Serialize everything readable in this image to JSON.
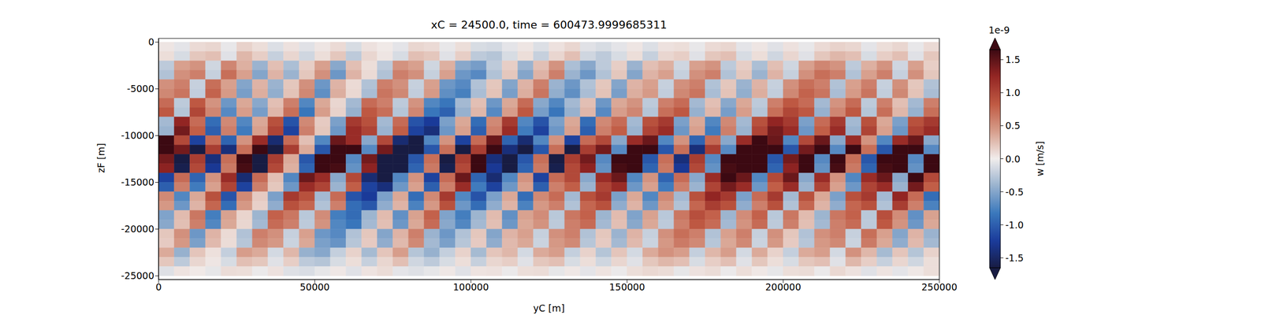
{
  "chart_data": {
    "type": "heatmap",
    "title": "xC = 24500.0, time = 600473.9999685311",
    "x_label": "yC [m]",
    "y_label": "zF [m]",
    "xlim": [
      0,
      250000
    ],
    "xticks": [
      0,
      50000,
      100000,
      150000,
      200000,
      250000
    ],
    "ylim": [
      -25400,
      400
    ],
    "yticks": [
      -25000,
      -20000,
      -15000,
      -10000,
      -5000,
      0
    ],
    "x_edges": [
      0,
      5000,
      10000,
      15000,
      20000,
      25000,
      30000,
      35000,
      40000,
      45000,
      50000,
      55000,
      60000,
      65000,
      70000,
      75000,
      80000,
      85000,
      90000,
      95000,
      100000,
      105000,
      110000,
      115000,
      120000,
      125000,
      130000,
      135000,
      140000,
      145000,
      150000,
      155000,
      160000,
      165000,
      170000,
      175000,
      180000,
      185000,
      190000,
      195000,
      200000,
      205000,
      210000,
      215000,
      220000,
      225000,
      230000,
      235000,
      240000,
      245000,
      250000
    ],
    "y_edges": [
      0,
      -1000,
      -2000,
      -3000,
      -4000,
      -5000,
      -6000,
      -7000,
      -8000,
      -9000,
      -10000,
      -11000,
      -12000,
      -13000,
      -14000,
      -15000,
      -16000,
      -17000,
      -18000,
      -19000,
      -20000,
      -21000,
      -22000,
      -23000,
      -24000,
      -25000
    ],
    "cells": [
      [
        0.04,
        -0.06,
        0.1,
        0.12,
        -0.04,
        0.14,
        0.08,
        -0.1,
        0.06,
        -0.08,
        0.04,
        0.1,
        -0.12,
        0.06,
        0.02,
        -0.06,
        0.12,
        0.1,
        -0.04,
        0.08,
        -0.12,
        -0.14,
        -0.06,
        0.04,
        -0.1,
        0.06,
        0.12,
        -0.08,
        -0.12,
        -0.06,
        0.04,
        -0.1,
        0.06,
        0.08,
        -0.04,
        0.1,
        0.12,
        -0.06,
        0.04,
        -0.08,
        0.06,
        -0.04,
        0.1,
        0.14,
        0.12,
        -0.06,
        0.08,
        0.12,
        -0.04,
        0.1
      ],
      [
        0.08,
        -0.12,
        0.2,
        0.24,
        -0.08,
        0.28,
        0.16,
        -0.2,
        0.12,
        -0.16,
        0.08,
        0.2,
        -0.24,
        0.12,
        0.04,
        -0.12,
        0.24,
        0.2,
        -0.08,
        0.16,
        -0.24,
        -0.28,
        -0.12,
        0.08,
        -0.2,
        0.12,
        0.24,
        -0.16,
        -0.24,
        -0.12,
        0.08,
        -0.2,
        0.12,
        0.16,
        -0.08,
        0.2,
        0.24,
        -0.12,
        0.08,
        -0.16,
        0.12,
        -0.08,
        0.2,
        0.28,
        0.24,
        -0.12,
        0.16,
        0.24,
        -0.08,
        0.2
      ],
      [
        -0.24,
        0.4,
        0.48,
        -0.16,
        0.56,
        0.32,
        -0.4,
        0.24,
        -0.32,
        0.16,
        0.4,
        -0.48,
        0.24,
        0.08,
        -0.24,
        0.48,
        0.4,
        -0.16,
        0.32,
        -0.48,
        -0.56,
        -0.24,
        0.16,
        -0.4,
        0.24,
        0.48,
        -0.32,
        -0.48,
        -0.24,
        0.16,
        -0.4,
        0.24,
        0.32,
        -0.16,
        0.4,
        0.48,
        -0.24,
        0.16,
        -0.32,
        0.24,
        -0.16,
        0.4,
        0.56,
        0.48,
        -0.24,
        0.32,
        0.48,
        -0.16,
        0.4,
        0.16
      ],
      [
        -0.3,
        0.5,
        0.6,
        -0.2,
        0.7,
        0.4,
        -0.5,
        0.3,
        -0.4,
        0.2,
        0.5,
        -0.6,
        0.3,
        0.1,
        -0.3,
        0.6,
        0.5,
        -0.2,
        0.4,
        -0.6,
        -0.7,
        -0.3,
        0.2,
        -0.5,
        0.3,
        0.6,
        -0.4,
        -0.6,
        -0.3,
        0.2,
        -0.5,
        0.3,
        0.4,
        -0.2,
        0.5,
        0.6,
        -0.3,
        0.2,
        -0.4,
        0.3,
        -0.2,
        0.5,
        0.7,
        0.6,
        -0.3,
        0.4,
        0.6,
        -0.2,
        0.5,
        0.2
      ],
      [
        0.5,
        0.6,
        -0.2,
        0.7,
        0.4,
        -0.5,
        0.3,
        -0.4,
        0.2,
        0.5,
        -0.6,
        0.3,
        0.1,
        -0.3,
        0.6,
        0.5,
        -0.2,
        0.4,
        -0.6,
        -0.7,
        -0.3,
        0.2,
        -0.5,
        0.3,
        0.6,
        -0.4,
        -0.6,
        -0.3,
        0.2,
        -0.5,
        0.3,
        0.4,
        -0.2,
        0.5,
        0.6,
        -0.3,
        0.2,
        -0.4,
        0.3,
        -0.2,
        0.5,
        0.7,
        0.6,
        -0.3,
        0.4,
        0.6,
        -0.2,
        0.5,
        0.2,
        -0.3
      ],
      [
        0.55,
        0.66,
        -0.22,
        0.77,
        0.44,
        -0.55,
        0.33,
        -0.44,
        0.22,
        0.55,
        -0.66,
        0.33,
        0.11,
        -0.33,
        0.66,
        0.55,
        -0.22,
        0.44,
        -0.66,
        -0.77,
        -0.33,
        0.22,
        -0.55,
        0.33,
        0.66,
        -0.44,
        -0.66,
        -0.33,
        0.22,
        -0.55,
        0.33,
        0.44,
        -0.22,
        0.55,
        0.66,
        -0.33,
        0.22,
        -0.44,
        0.33,
        -0.22,
        0.55,
        0.77,
        0.66,
        -0.33,
        0.44,
        0.66,
        -0.22,
        0.55,
        0.22,
        -0.33
      ],
      [
        0.72,
        -0.24,
        0.84,
        0.48,
        -0.6,
        0.36,
        -0.48,
        0.24,
        0.6,
        -0.72,
        0.36,
        0.12,
        -0.36,
        0.72,
        0.6,
        -0.24,
        0.48,
        -0.72,
        -0.84,
        -0.36,
        0.24,
        -0.6,
        0.36,
        0.72,
        -0.48,
        -0.72,
        -0.36,
        0.24,
        -0.6,
        0.36,
        0.48,
        -0.24,
        0.6,
        0.72,
        -0.36,
        0.24,
        -0.48,
        0.36,
        -0.24,
        0.6,
        0.84,
        0.72,
        -0.36,
        0.48,
        0.72,
        -0.24,
        0.6,
        0.24,
        -0.36,
        0.6
      ],
      [
        0.84,
        -0.28,
        0.98,
        0.56,
        -0.7,
        0.42,
        -0.56,
        0.28,
        0.7,
        -0.84,
        0.42,
        0.14,
        -0.42,
        0.84,
        0.7,
        -0.28,
        0.56,
        -0.84,
        -0.98,
        -0.42,
        0.28,
        -0.7,
        0.42,
        0.84,
        -0.56,
        -0.84,
        -0.42,
        0.28,
        -0.7,
        0.42,
        0.56,
        -0.28,
        0.7,
        0.84,
        -0.42,
        0.28,
        -0.56,
        0.42,
        -0.28,
        0.7,
        0.98,
        0.84,
        -0.42,
        0.56,
        0.84,
        -0.28,
        0.7,
        0.28,
        -0.42,
        0.7
      ],
      [
        -0.36,
        1.26,
        0.72,
        -0.9,
        0.54,
        -0.72,
        0.36,
        0.9,
        -1.08,
        0.54,
        0.18,
        -0.54,
        1.08,
        0.9,
        -0.36,
        0.72,
        -1.08,
        -1.26,
        -0.54,
        0.36,
        -0.9,
        0.54,
        1.08,
        -0.72,
        -1.08,
        -0.54,
        0.36,
        -0.9,
        0.54,
        0.72,
        -0.36,
        0.9,
        1.08,
        -0.54,
        0.36,
        -0.72,
        0.54,
        -0.36,
        0.9,
        1.26,
        1.08,
        -0.54,
        0.72,
        1.08,
        -0.36,
        0.9,
        0.36,
        -0.54,
        0.9,
        1.08
      ],
      [
        -0.4,
        1.4,
        0.8,
        -1,
        0.6,
        -0.8,
        0.4,
        1,
        -1.2,
        0.6,
        0.2,
        -0.6,
        1.2,
        1,
        -0.4,
        0.8,
        -1.2,
        -1.4,
        -0.6,
        0.4,
        -1,
        0.6,
        1.2,
        -0.8,
        -1.2,
        -0.6,
        0.4,
        -1,
        0.6,
        0.8,
        -0.4,
        1,
        1.2,
        -0.6,
        0.4,
        -0.8,
        0.6,
        -0.4,
        1,
        1.4,
        1.2,
        -0.6,
        0.8,
        1.2,
        -0.4,
        1,
        0.4,
        -0.6,
        1,
        1.2
      ],
      [
        1.68,
        0.96,
        -1.2,
        0.72,
        -0.96,
        0.48,
        1.2,
        -1.44,
        0.72,
        0.24,
        -0.72,
        1.44,
        1.2,
        -0.48,
        0.96,
        -1.44,
        -1.68,
        -0.72,
        0.48,
        -1.2,
        0.72,
        1.44,
        -0.96,
        -1.44,
        -0.72,
        0.48,
        -1.2,
        0.72,
        0.96,
        -0.48,
        1.2,
        1.44,
        -0.72,
        0.48,
        -0.96,
        0.72,
        -0.48,
        1.2,
        1.68,
        1.44,
        -0.72,
        0.96,
        1.44,
        -0.48,
        1.2,
        0.48,
        -0.72,
        1.2,
        1.44,
        -0.48
      ],
      [
        2.45,
        1.4,
        -1.75,
        1.05,
        -1.4,
        0.7,
        1.75,
        -2.1,
        1.05,
        0.35,
        -1.05,
        2.1,
        1.75,
        -0.7,
        1.4,
        -2.1,
        -2.45,
        -1.05,
        0.7,
        -1.75,
        1.05,
        2.1,
        -1.4,
        -2.1,
        -1.05,
        0.7,
        -1.75,
        1.05,
        1.4,
        -0.7,
        1.75,
        2.1,
        -1.05,
        0.7,
        -1.4,
        1.05,
        -0.7,
        1.75,
        2.45,
        2.1,
        -1.05,
        1.4,
        2.1,
        -0.7,
        1.75,
        0.7,
        -1.05,
        1.75,
        2.1,
        -0.7
      ],
      [
        1.4,
        -1.75,
        1.05,
        -1.4,
        0.7,
        1.75,
        -2.1,
        1.05,
        0.35,
        -1.05,
        2.1,
        1.75,
        -0.7,
        1.4,
        -2.1,
        -2.45,
        -1.05,
        0.7,
        -1.75,
        1.05,
        2.1,
        -1.4,
        -2.1,
        -1.05,
        0.7,
        -1.75,
        1.05,
        1.4,
        -0.7,
        1.75,
        2.1,
        -1.05,
        0.7,
        -1.4,
        1.05,
        -0.7,
        1.75,
        2.45,
        2.1,
        -1.05,
        1.4,
        2.1,
        -0.7,
        1.75,
        0.7,
        -1.05,
        1.75,
        2.1,
        -0.7,
        2.45
      ],
      [
        1.28,
        -1.6,
        0.96,
        -1.28,
        0.64,
        1.6,
        -1.92,
        0.96,
        0.32,
        -0.96,
        1.92,
        1.6,
        -0.64,
        1.28,
        -1.92,
        -2.24,
        -0.96,
        0.64,
        -1.6,
        0.96,
        1.92,
        -1.28,
        -1.92,
        -0.96,
        0.64,
        -1.6,
        0.96,
        1.28,
        -0.64,
        1.6,
        1.92,
        -0.96,
        0.64,
        -1.28,
        0.96,
        -0.64,
        1.6,
        2.24,
        1.92,
        -0.96,
        1.28,
        1.92,
        -0.64,
        1.6,
        0.64,
        -0.96,
        1.6,
        1.92,
        -0.64,
        2.24
      ],
      [
        -1.2,
        0.72,
        -0.96,
        0.48,
        1.2,
        -1.44,
        0.72,
        0.24,
        -0.72,
        1.44,
        1.2,
        -0.48,
        0.96,
        -1.44,
        -1.68,
        -0.72,
        0.48,
        -1.2,
        0.72,
        1.44,
        -0.96,
        -1.44,
        -0.72,
        0.48,
        -1.2,
        0.72,
        0.96,
        -0.48,
        1.2,
        1.44,
        -0.72,
        0.48,
        -0.96,
        0.72,
        -0.48,
        1.2,
        1.68,
        1.44,
        -0.72,
        0.96,
        1.44,
        -0.48,
        1.2,
        0.48,
        -0.72,
        1.2,
        1.44,
        -0.48,
        1.68,
        0.96
      ],
      [
        -1,
        0.6,
        -0.8,
        0.4,
        1,
        -1.2,
        0.6,
        0.2,
        -0.6,
        1.2,
        1,
        -0.4,
        0.8,
        -1.2,
        -1.4,
        -0.6,
        0.4,
        -1,
        0.6,
        1.2,
        -0.8,
        -1.2,
        -0.6,
        0.4,
        -1,
        0.6,
        0.8,
        -0.4,
        1,
        1.2,
        -0.6,
        0.4,
        -0.8,
        0.6,
        -0.4,
        1,
        1.4,
        1.2,
        -0.6,
        0.8,
        1.2,
        -0.4,
        1,
        0.4,
        -0.6,
        1,
        1.2,
        -0.4,
        1.4,
        0.8
      ],
      [
        0.54,
        -0.72,
        0.36,
        0.9,
        -1.08,
        0.54,
        0.18,
        -0.54,
        1.08,
        0.9,
        -0.36,
        0.72,
        -1.08,
        -1.26,
        -0.54,
        0.36,
        -0.9,
        0.54,
        1.08,
        -0.72,
        -1.08,
        -0.54,
        0.36,
        -0.9,
        0.54,
        0.72,
        -0.36,
        0.9,
        1.08,
        -0.54,
        0.36,
        -0.72,
        0.54,
        -0.36,
        0.9,
        1.26,
        1.08,
        -0.54,
        0.72,
        1.08,
        -0.36,
        0.9,
        0.36,
        -0.54,
        0.9,
        1.08,
        -0.36,
        1.26,
        0.72,
        -0.9
      ],
      [
        0.45,
        -0.6,
        0.3,
        0.75,
        -0.9,
        0.45,
        0.15,
        -0.45,
        0.9,
        0.75,
        -0.3,
        0.6,
        -0.9,
        -1.05,
        -0.45,
        0.3,
        -0.75,
        0.45,
        0.9,
        -0.6,
        -0.9,
        -0.45,
        0.3,
        -0.75,
        0.45,
        0.6,
        -0.3,
        0.75,
        0.9,
        -0.45,
        0.3,
        -0.6,
        0.45,
        -0.3,
        0.75,
        1.05,
        0.9,
        -0.45,
        0.6,
        0.9,
        -0.3,
        0.75,
        0.3,
        -0.45,
        0.75,
        0.9,
        -0.3,
        1.05,
        0.6,
        -0.75
      ],
      [
        -0.52,
        0.26,
        0.65,
        -0.78,
        0.39,
        0.13,
        -0.39,
        0.78,
        0.65,
        -0.26,
        0.52,
        -0.78,
        -0.91,
        -0.39,
        0.26,
        -0.65,
        0.39,
        0.78,
        -0.52,
        -0.78,
        -0.39,
        0.26,
        -0.65,
        0.39,
        0.52,
        -0.26,
        0.65,
        0.78,
        -0.39,
        0.26,
        -0.52,
        0.39,
        -0.26,
        0.65,
        0.91,
        0.78,
        -0.39,
        0.52,
        0.78,
        -0.26,
        0.65,
        0.26,
        -0.39,
        0.65,
        0.78,
        -0.26,
        0.91,
        0.52,
        -0.65,
        0.39
      ],
      [
        -0.48,
        0.24,
        0.6,
        -0.72,
        0.36,
        0.12,
        -0.36,
        0.72,
        0.6,
        -0.24,
        0.48,
        -0.72,
        -0.84,
        -0.36,
        0.24,
        -0.6,
        0.36,
        0.72,
        -0.48,
        -0.72,
        -0.36,
        0.24,
        -0.6,
        0.36,
        0.48,
        -0.24,
        0.6,
        0.72,
        -0.36,
        0.24,
        -0.48,
        0.36,
        -0.24,
        0.6,
        0.84,
        0.72,
        -0.36,
        0.48,
        0.72,
        -0.24,
        0.6,
        0.24,
        -0.36,
        0.6,
        0.72,
        -0.24,
        0.84,
        0.48,
        -0.6,
        0.36
      ],
      [
        0.2,
        0.5,
        -0.6,
        0.3,
        0.1,
        -0.3,
        0.6,
        0.5,
        -0.2,
        0.4,
        -0.6,
        -0.7,
        -0.3,
        0.2,
        -0.5,
        0.3,
        0.6,
        -0.4,
        -0.6,
        -0.3,
        0.2,
        -0.5,
        0.3,
        0.4,
        -0.2,
        0.5,
        0.6,
        -0.3,
        0.2,
        -0.4,
        0.3,
        -0.2,
        0.5,
        0.7,
        0.6,
        -0.3,
        0.4,
        0.6,
        -0.2,
        0.5,
        0.2,
        -0.3,
        0.5,
        0.6,
        -0.2,
        0.7,
        0.4,
        -0.5,
        0.3,
        -0.4
      ],
      [
        0.18,
        0.45,
        -0.54,
        0.27,
        0.09,
        -0.27,
        0.54,
        0.45,
        -0.18,
        0.36,
        -0.54,
        -0.63,
        -0.27,
        0.18,
        -0.45,
        0.27,
        0.54,
        -0.36,
        -0.54,
        -0.27,
        0.18,
        -0.45,
        0.27,
        0.36,
        -0.18,
        0.45,
        0.54,
        -0.27,
        0.18,
        -0.36,
        0.27,
        -0.18,
        0.45,
        0.63,
        0.54,
        -0.27,
        0.36,
        0.54,
        -0.18,
        0.45,
        0.18,
        -0.27,
        0.45,
        0.54,
        -0.18,
        0.63,
        0.36,
        -0.45,
        0.27,
        -0.36
      ],
      [
        0.35,
        -0.42,
        0.21,
        0.07,
        -0.21,
        0.42,
        0.35,
        -0.14,
        0.28,
        -0.42,
        -0.49,
        -0.21,
        0.14,
        -0.35,
        0.21,
        0.42,
        -0.28,
        -0.42,
        -0.21,
        0.14,
        -0.35,
        0.21,
        0.28,
        -0.14,
        0.35,
        0.42,
        -0.21,
        0.14,
        -0.28,
        0.21,
        -0.14,
        0.35,
        0.49,
        0.42,
        -0.21,
        0.28,
        0.42,
        -0.14,
        0.35,
        0.14,
        -0.21,
        0.35,
        0.42,
        -0.14,
        0.49,
        0.28,
        -0.35,
        0.21,
        -0.28,
        0.14
      ],
      [
        0.2,
        -0.24,
        0.12,
        0.04,
        -0.12,
        0.24,
        0.2,
        -0.08,
        0.16,
        -0.24,
        -0.28,
        -0.12,
        0.08,
        -0.2,
        0.12,
        0.24,
        -0.16,
        -0.24,
        -0.12,
        0.08,
        -0.2,
        0.12,
        0.16,
        -0.08,
        0.2,
        0.24,
        -0.12,
        0.08,
        -0.16,
        0.12,
        -0.08,
        0.2,
        0.28,
        0.24,
        -0.12,
        0.16,
        0.24,
        -0.08,
        0.2,
        0.08,
        -0.12,
        0.2,
        0.24,
        -0.08,
        0.28,
        0.16,
        -0.2,
        0.12,
        -0.16,
        0.08
      ],
      [
        -0.09,
        0.05,
        0.02,
        -0.05,
        0.09,
        0.08,
        -0.03,
        0.06,
        -0.09,
        -0.11,
        -0.05,
        0.03,
        -0.08,
        0.05,
        0.09,
        -0.06,
        -0.09,
        -0.05,
        0.03,
        -0.08,
        0.05,
        0.06,
        -0.03,
        0.08,
        0.09,
        -0.05,
        0.03,
        -0.06,
        0.05,
        -0.03,
        0.08,
        0.11,
        0.09,
        -0.05,
        0.06,
        0.09,
        -0.03,
        0.08,
        0.03,
        -0.05,
        0.08,
        0.09,
        -0.03,
        0.11,
        0.06,
        -0.08,
        0.05,
        -0.06,
        0.03,
        0.08
      ]
    ],
    "colorbar": {
      "label": "w [m/s]",
      "offset_label": "1e-9",
      "range": [
        -1.65,
        1.65
      ],
      "ticks": [
        -1.5,
        {
          "value": -1,
          "label": "-1.0"
        },
        -0.5,
        {
          "value": 0,
          "label": "0.0"
        },
        0.5,
        {
          "value": 1,
          "label": "1.0"
        },
        1.5
      ]
    }
  }
}
